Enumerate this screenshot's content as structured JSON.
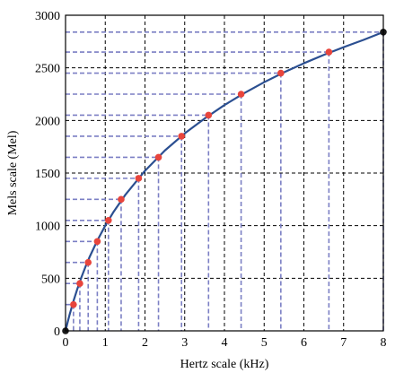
{
  "chart_data": {
    "type": "line",
    "xlabel": "Hertz scale (kHz)",
    "ylabel": "Mels scale (Mel)",
    "xlim": [
      0,
      8
    ],
    "ylim": [
      0,
      3000
    ],
    "x_ticks": [
      "0",
      "1",
      "2",
      "3",
      "4",
      "5",
      "6",
      "7",
      "8"
    ],
    "y_ticks": [
      "0",
      "500",
      "1000",
      "1500",
      "2000",
      "2500",
      "3000"
    ],
    "grid": true,
    "colors": {
      "curve": "#2b4f91",
      "marker": "#e8453c",
      "guide": "#7b7fc4",
      "endpoint": "#1a1a1a"
    },
    "series": [
      {
        "x": [
          0.0,
          0.05,
          0.1,
          0.2,
          0.3,
          0.4,
          0.5,
          0.6,
          0.8,
          1.0,
          1.2,
          1.5,
          2.0,
          2.5,
          3.0,
          3.5,
          4.0,
          4.5,
          5.0,
          5.5,
          6.0,
          6.5,
          7.0,
          7.5,
          8.0
        ],
        "y": [
          0,
          77.8,
          150.5,
          283.2,
          401.9,
          509.4,
          607.4,
          697.6,
          858.8,
          999.9,
          1125.6,
          1290.6,
          1521.4,
          1714.0,
          1876.8,
          2018.2,
          2146.1,
          2260.3,
          2363.5,
          2457.5,
          2543.4,
          2622.9,
          2696.6,
          2765.8,
          2840.0
        ]
      }
    ],
    "markers": {
      "x": [
        0.2,
        0.36,
        0.57,
        0.8,
        1.08,
        1.4,
        1.84,
        2.34,
        2.92,
        3.6,
        4.42,
        5.42,
        6.63
      ],
      "y": [
        250,
        450,
        650,
        850,
        1050,
        1250,
        1450,
        1650,
        1850,
        2050,
        2250,
        2450,
        2650
      ]
    },
    "endpoints": {
      "x": [
        0,
        8
      ],
      "y": [
        0,
        2840
      ]
    }
  }
}
